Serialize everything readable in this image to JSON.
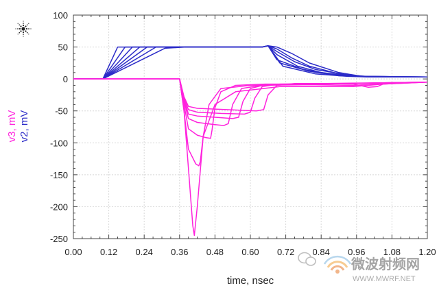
{
  "chart_data": {
    "type": "line",
    "xlabel": "time, nsec",
    "ylabels": [
      "v3, mV",
      "v2, mV"
    ],
    "xlim": [
      0.0,
      1.2
    ],
    "ylim": [
      -250,
      100
    ],
    "xticks": [
      "0.00",
      "0.12",
      "0.24",
      "0.36",
      "0.48",
      "0.60",
      "0.72",
      "0.84",
      "0.96",
      "1.08",
      "1.20"
    ],
    "yticks": [
      "100",
      "50",
      "0",
      "-50",
      "-100",
      "-150",
      "-200",
      "-250"
    ],
    "grid": true,
    "colors": {
      "v2": "#2b2bc8",
      "v3": "#ff22dd"
    },
    "series": [
      {
        "group": "v2",
        "x": [
          0.0,
          0.1,
          0.15,
          0.38,
          0.64,
          0.66,
          0.69,
          0.74,
          0.8,
          0.9,
          0.98,
          1.2
        ],
        "y": [
          0,
          0,
          50,
          50,
          50,
          52,
          50,
          40,
          25,
          10,
          4,
          3
        ]
      },
      {
        "group": "v2",
        "x": [
          0.0,
          0.1,
          0.175,
          0.38,
          0.64,
          0.66,
          0.69,
          0.74,
          0.8,
          0.9,
          0.98,
          1.2
        ],
        "y": [
          0,
          0,
          50,
          50,
          50,
          52,
          47,
          33,
          20,
          8,
          4,
          3
        ]
      },
      {
        "group": "v2",
        "x": [
          0.0,
          0.1,
          0.2,
          0.38,
          0.64,
          0.66,
          0.69,
          0.75,
          0.82,
          0.92,
          0.99,
          1.2
        ],
        "y": [
          0,
          0,
          50,
          50,
          50,
          52,
          43,
          27,
          15,
          7,
          4,
          3
        ]
      },
      {
        "group": "v2",
        "x": [
          0.0,
          0.1,
          0.225,
          0.38,
          0.64,
          0.66,
          0.69,
          0.76,
          0.84,
          0.94,
          1.0,
          1.2
        ],
        "y": [
          0,
          0,
          50,
          50,
          50,
          52,
          38,
          20,
          10,
          5,
          4,
          3
        ]
      },
      {
        "group": "v2",
        "x": [
          0.0,
          0.1,
          0.25,
          0.38,
          0.64,
          0.66,
          0.69,
          0.78,
          0.88,
          0.96,
          1.01,
          1.2
        ],
        "y": [
          0,
          0,
          50,
          50,
          50,
          52,
          30,
          15,
          7,
          4,
          3,
          3
        ]
      },
      {
        "group": "v2",
        "x": [
          0.0,
          0.1,
          0.28,
          0.38,
          0.64,
          0.66,
          0.7,
          0.8,
          0.9,
          0.98,
          1.02,
          1.2
        ],
        "y": [
          0,
          0,
          50,
          50,
          50,
          52,
          25,
          12,
          5,
          4,
          3,
          3
        ]
      },
      {
        "group": "v2",
        "x": [
          0.0,
          0.1,
          0.31,
          0.38,
          0.64,
          0.66,
          0.71,
          0.82,
          0.93,
          1.0,
          1.04,
          1.2
        ],
        "y": [
          0,
          0,
          48,
          50,
          50,
          52,
          20,
          8,
          4,
          3,
          3,
          3
        ]
      },
      {
        "group": "v3",
        "x": [
          0.0,
          0.36,
          0.375,
          0.39,
          0.405,
          0.41,
          0.42,
          0.44,
          0.48,
          0.55,
          0.7,
          0.95,
          1.05,
          1.2
        ],
        "y": [
          0,
          0,
          -50,
          -140,
          -230,
          -245,
          -200,
          -90,
          -40,
          -20,
          -12,
          -12,
          -8,
          -5
        ]
      },
      {
        "group": "v3",
        "x": [
          0.0,
          0.36,
          0.375,
          0.39,
          0.415,
          0.425,
          0.43,
          0.44,
          0.46,
          0.5,
          0.6,
          0.8,
          0.95,
          1.05,
          1.2
        ],
        "y": [
          0,
          0,
          -50,
          -110,
          -133,
          -136,
          -130,
          -90,
          -40,
          -15,
          -10,
          -9,
          -10,
          -7,
          -5
        ]
      },
      {
        "group": "v3",
        "x": [
          0.0,
          0.36,
          0.375,
          0.39,
          0.42,
          0.45,
          0.465,
          0.47,
          0.48,
          0.5,
          0.55,
          0.65,
          0.85,
          1.05,
          1.2
        ],
        "y": [
          0,
          0,
          -40,
          -78,
          -88,
          -92,
          -93,
          -80,
          -45,
          -20,
          -10,
          -8,
          -8,
          -6,
          -5
        ]
      },
      {
        "group": "v3",
        "x": [
          0.0,
          0.36,
          0.375,
          0.39,
          0.42,
          0.47,
          0.51,
          0.525,
          0.54,
          0.57,
          0.65,
          0.85,
          1.05,
          1.2
        ],
        "y": [
          0,
          0,
          -35,
          -62,
          -68,
          -71,
          -73,
          -70,
          -40,
          -15,
          -9,
          -8,
          -6,
          -5
        ]
      },
      {
        "group": "v3",
        "x": [
          0.0,
          0.36,
          0.375,
          0.39,
          0.42,
          0.48,
          0.54,
          0.56,
          0.575,
          0.6,
          0.65,
          0.8,
          1.05,
          1.2
        ],
        "y": [
          0,
          0,
          -32,
          -55,
          -58,
          -60,
          -62,
          -60,
          -35,
          -15,
          -9,
          -8,
          -6,
          -5
        ]
      },
      {
        "group": "v3",
        "x": [
          0.0,
          0.36,
          0.375,
          0.39,
          0.42,
          0.5,
          0.58,
          0.6,
          0.615,
          0.64,
          0.7,
          0.85,
          1.05,
          1.2
        ],
        "y": [
          0,
          0,
          -30,
          -48,
          -52,
          -54,
          -55,
          -52,
          -30,
          -12,
          -8,
          -7,
          -6,
          -5
        ]
      },
      {
        "group": "v3",
        "x": [
          0.0,
          0.36,
          0.375,
          0.39,
          0.42,
          0.52,
          0.62,
          0.645,
          0.66,
          0.69,
          0.75,
          0.85,
          0.95,
          1.0,
          1.03,
          1.05,
          1.2
        ],
        "y": [
          0,
          0,
          -28,
          -43,
          -46,
          -48,
          -50,
          -48,
          -25,
          -10,
          -7,
          -7,
          -8,
          -13,
          -12,
          -8,
          -5
        ]
      }
    ]
  },
  "watermark": {
    "text": "微波射频网",
    "url": "WWW.MWRF.NET"
  }
}
